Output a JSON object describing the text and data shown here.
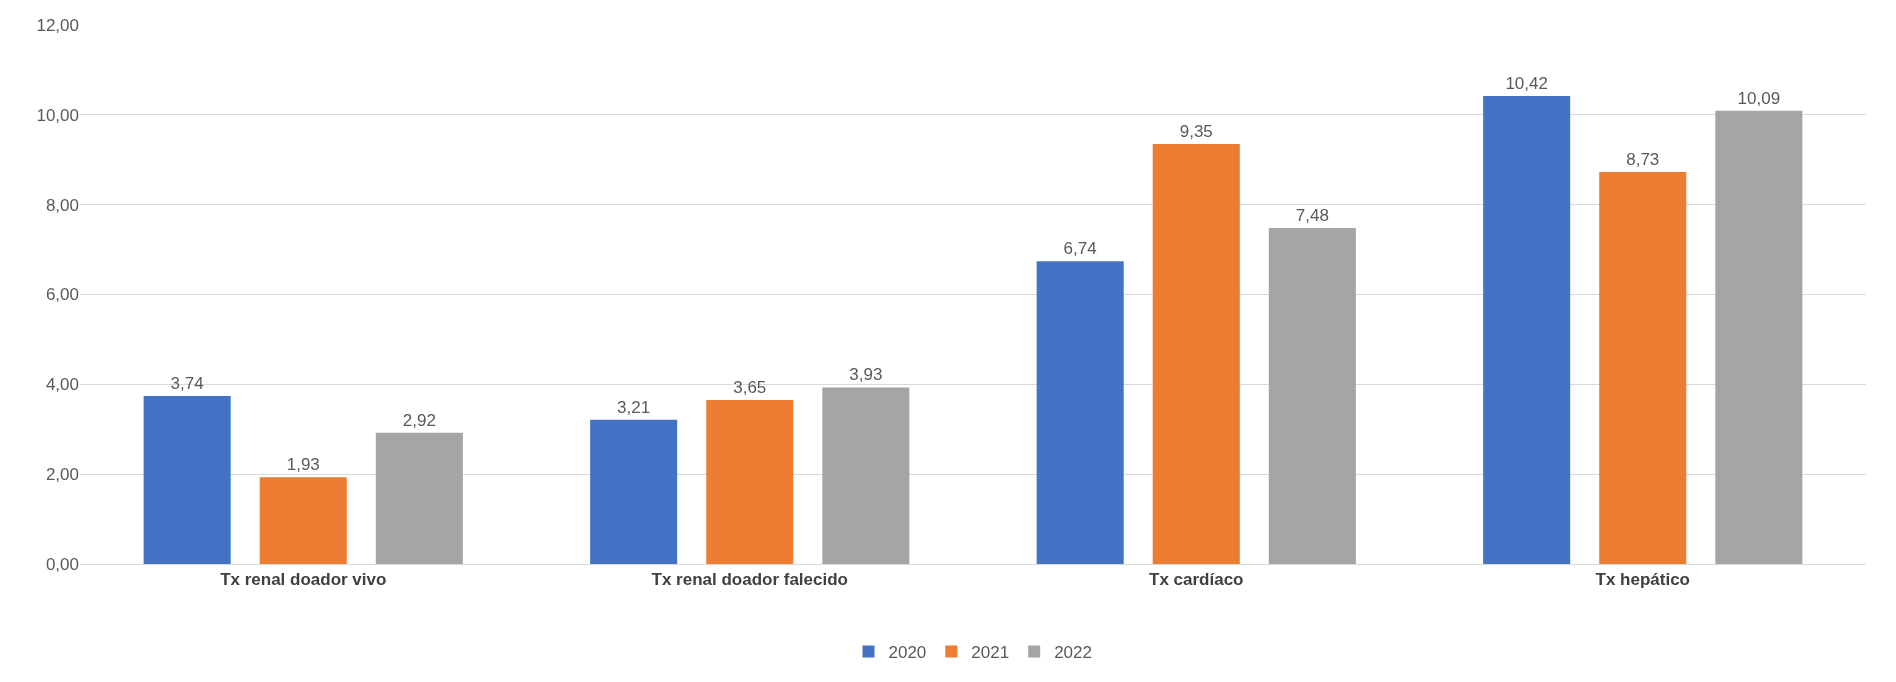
{
  "chart_data": {
    "type": "bar",
    "categories": [
      "Tx renal doador vivo",
      "Tx renal doador falecido",
      "Tx cardíaco",
      "Tx hepático"
    ],
    "series": [
      {
        "name": "2020",
        "color": "#4472c4",
        "values": [
          3.74,
          3.21,
          6.74,
          10.42
        ],
        "value_labels": [
          "3,74",
          "3,21",
          "6,74",
          "10,42"
        ]
      },
      {
        "name": "2021",
        "color": "#ed7d31",
        "values": [
          1.93,
          3.65,
          9.35,
          8.73
        ],
        "value_labels": [
          "1,93",
          "3,65",
          "9,35",
          "8,73"
        ]
      },
      {
        "name": "2022",
        "color": "#a5a5a5",
        "values": [
          2.92,
          3.93,
          7.48,
          10.09
        ],
        "value_labels": [
          "2,92",
          "3,93",
          "7,48",
          "10,09"
        ]
      }
    ],
    "ylim": [
      0,
      12
    ],
    "yticks": [
      {
        "value": 0,
        "label": "0,00"
      },
      {
        "value": 2,
        "label": "2,00"
      },
      {
        "value": 4,
        "label": "4,00"
      },
      {
        "value": 6,
        "label": "6,00"
      },
      {
        "value": 8,
        "label": "8,00"
      },
      {
        "value": 10,
        "label": "10,00"
      },
      {
        "value": 12,
        "label": "12,00"
      }
    ],
    "grid": "y",
    "legend": "bottom"
  }
}
